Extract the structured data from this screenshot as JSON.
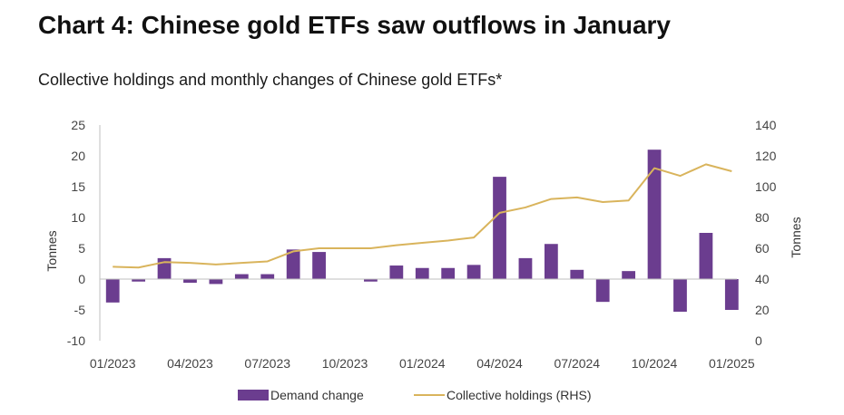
{
  "title": "Chart 4: Chinese gold ETFs saw outflows in January",
  "subtitle": "Collective holdings and monthly changes of Chinese gold ETFs*",
  "colors": {
    "bar": "#6b3d8f",
    "line": "#d9b45c",
    "grid": "#d9d9d9"
  },
  "chart_data": {
    "type": "bar",
    "categories": [
      "01/2023",
      "02/2023",
      "03/2023",
      "04/2023",
      "05/2023",
      "06/2023",
      "07/2023",
      "08/2023",
      "09/2023",
      "10/2023",
      "11/2023",
      "12/2023",
      "01/2024",
      "02/2024",
      "03/2024",
      "04/2024",
      "05/2024",
      "06/2024",
      "07/2024",
      "08/2024",
      "09/2024",
      "10/2024",
      "11/2024",
      "12/2024",
      "01/2025"
    ],
    "x_tick_labels": [
      "01/2023",
      "04/2023",
      "07/2023",
      "10/2023",
      "01/2024",
      "04/2024",
      "07/2024",
      "10/2024",
      "01/2025"
    ],
    "series": [
      {
        "name": "Demand change",
        "type": "bar",
        "axis": "left",
        "values": [
          -3.8,
          -0.4,
          3.4,
          -0.6,
          -0.8,
          0.8,
          0.8,
          4.8,
          4.4,
          0.0,
          -0.4,
          2.2,
          1.8,
          1.8,
          2.3,
          16.6,
          3.4,
          5.7,
          1.5,
          -3.7,
          1.3,
          21.0,
          -5.3,
          7.5,
          -5.0
        ]
      },
      {
        "name": "Collective holdings (RHS)",
        "type": "line",
        "axis": "right",
        "values": [
          48,
          47.5,
          51,
          50.5,
          49.5,
          50.5,
          51.5,
          58,
          60,
          60,
          60,
          62,
          63.5,
          65,
          67,
          83,
          86.5,
          92,
          93,
          90,
          91,
          112,
          107,
          114.5,
          110
        ]
      }
    ],
    "yleft": {
      "label": "Tonnes",
      "min": -10,
      "max": 25,
      "ticks": [
        -10,
        -5,
        0,
        5,
        10,
        15,
        20,
        25
      ]
    },
    "yright": {
      "label": "Tonnes",
      "min": 0,
      "max": 140,
      "ticks": [
        0,
        20,
        40,
        60,
        80,
        100,
        120,
        140
      ]
    },
    "grid": false,
    "legend_position": "bottom"
  }
}
